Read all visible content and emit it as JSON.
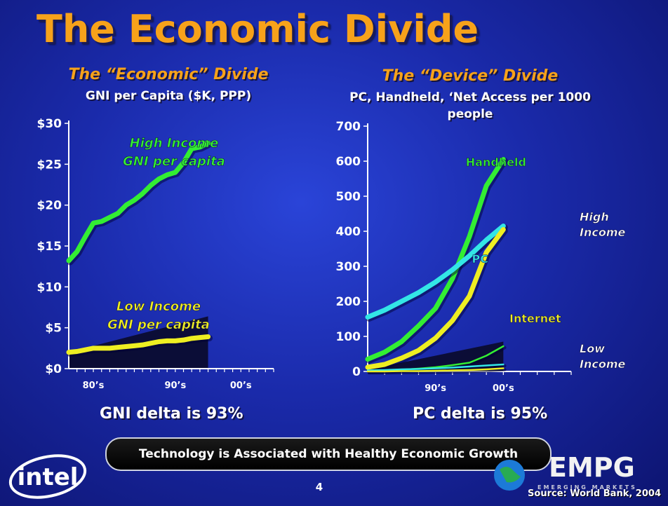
{
  "slide": {
    "title": "The Economic Divide",
    "banner": "Technology is Associated with Healthy Economic Growth",
    "page_number": "4",
    "source": "Source: World Bank, 2004",
    "left_title": "The “Economic” Divide",
    "left_subtitle": "GNI per Capita ($K, PPP)",
    "right_title": "The “Device” Divide",
    "right_subtitle": "PC, Handheld, ‘Net Access per 1000 people",
    "left_delta": "GNI delta is 93%",
    "right_delta": "PC delta is 95%",
    "intel_logo_text": "intel",
    "empg_logo_text": "EMPG",
    "empg_tagline": "EMERGING MARKETS"
  },
  "colors": {
    "title": "#f7a21a",
    "green": "#33ee33",
    "yellow": "#eeee22",
    "cyan": "#33e6e6"
  },
  "chart_data": [
    {
      "type": "line",
      "title": "The “Economic” Divide",
      "subtitle": "GNI per Capita ($K, PPP)",
      "y_tick_labels": [
        "$0",
        "$5",
        "$10",
        "$15",
        "$20",
        "$25",
        "$30"
      ],
      "ylim": [
        0,
        30
      ],
      "x_tick_labels": [
        "80’s",
        "90’s",
        "00’s"
      ],
      "x_tick_positions": [
        3,
        13,
        21
      ],
      "xlim": [
        0,
        25
      ],
      "x": [
        0,
        1,
        2,
        3,
        4,
        5,
        6,
        7,
        8,
        9,
        10,
        11,
        12,
        13,
        14,
        15,
        16,
        17,
        18,
        19,
        20,
        21,
        22,
        23,
        24,
        25
      ],
      "series": [
        {
          "name": "High Income GNI per capita",
          "label_lines": [
            "High Income",
            "GNI per capita"
          ],
          "color": "#33ee33",
          "values": [
            13.2,
            14.3,
            16.1,
            17.8,
            18.0,
            18.5,
            19.0,
            20.0,
            20.6,
            21.4,
            22.4,
            23.2,
            23.7,
            24.0,
            25.2,
            26.9,
            27.1,
            27.6,
            null,
            null,
            null,
            null,
            null,
            null,
            null,
            null
          ]
        },
        {
          "name": "Low Income GNI per capita",
          "label_lines": [
            "Low Income",
            "GNI per capita"
          ],
          "color": "#eeee22",
          "values": [
            2.0,
            2.1,
            2.3,
            2.5,
            2.5,
            2.5,
            2.6,
            2.7,
            2.8,
            2.9,
            3.1,
            3.3,
            3.4,
            3.4,
            3.5,
            3.7,
            3.8,
            3.9,
            null,
            null,
            null,
            null,
            null,
            null,
            null,
            null
          ]
        }
      ],
      "gap_band": {
        "x": [
          0,
          17
        ],
        "top": [
          2.0,
          6.4
        ]
      }
    },
    {
      "type": "line",
      "title": "The “Device” Divide",
      "subtitle": "PC, Handheld, ‘Net Access per 1000 people",
      "y_tick_labels": [
        "0",
        "100",
        "200",
        "300",
        "400",
        "500",
        "600",
        "700"
      ],
      "ylim": [
        0,
        700
      ],
      "x_tick_labels": [
        "90’s",
        "00’s"
      ],
      "x_tick_positions": [
        4,
        8
      ],
      "xlim": [
        0,
        12
      ],
      "x": [
        0,
        1,
        2,
        3,
        4,
        5,
        6,
        7,
        8,
        9,
        10,
        11,
        12
      ],
      "series": [
        {
          "name": "Handheld",
          "color": "#33ee33",
          "group": "high",
          "values": [
            35,
            55,
            85,
            130,
            180,
            265,
            385,
            530,
            605,
            null,
            null,
            null,
            null
          ]
        },
        {
          "name": "PC",
          "color": "#33e6e6",
          "group": "high",
          "values": [
            155,
            175,
            200,
            225,
            255,
            290,
            330,
            375,
            415,
            null,
            null,
            null,
            null
          ]
        },
        {
          "name": "Internet",
          "color": "#eeee22",
          "group": "high",
          "values": [
            12,
            20,
            38,
            60,
            95,
            145,
            215,
            340,
            405,
            null,
            null,
            null,
            null
          ]
        },
        {
          "name": "Handheld (Low Income)",
          "color": "#33ee33",
          "group": "low",
          "values": [
            2,
            3,
            5,
            8,
            12,
            18,
            25,
            45,
            72,
            null,
            null,
            null,
            null
          ]
        },
        {
          "name": "PC (Low Income)",
          "color": "#33e6e6",
          "group": "low",
          "values": [
            3,
            4,
            6,
            7,
            9,
            11,
            14,
            17,
            20,
            null,
            null,
            null,
            null
          ]
        },
        {
          "name": "Internet (Low Income)",
          "color": "#eeee22",
          "group": "low",
          "values": [
            0,
            0,
            1,
            1,
            2,
            3,
            4,
            6,
            9,
            null,
            null,
            null,
            null
          ]
        }
      ],
      "series_labels": {
        "handheld": "Handheld",
        "pc": "PC",
        "internet": "Internet"
      },
      "group_labels": {
        "high": [
          "High",
          "Income"
        ],
        "low": [
          "Low",
          "Income"
        ]
      },
      "gap_band": {
        "x": [
          0,
          8
        ],
        "top": [
          5,
          85
        ]
      }
    }
  ]
}
